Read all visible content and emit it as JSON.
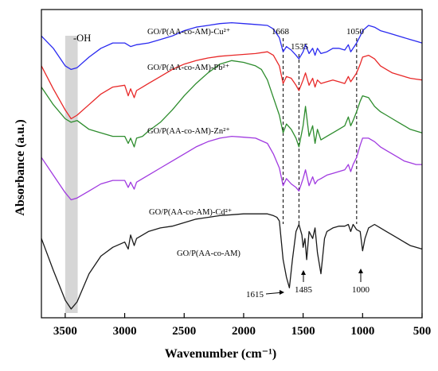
{
  "chart_data": {
    "type": "line",
    "xlabel": "Wavenumber (cm⁻¹)",
    "ylabel": "Absorbance (a.u.)",
    "xlim": [
      3700,
      500
    ],
    "x_reversed": true,
    "x_ticks": [
      3500,
      3000,
      2500,
      2000,
      1500,
      1000,
      500
    ],
    "y_ticks_shown": false,
    "grid": false,
    "legend": "none (curves labeled inline)",
    "series": [
      {
        "name": "GO/P(AA-co-AM)-Cu²⁺",
        "color": "#2a2af0",
        "x": [
          3700,
          3600,
          3500,
          3450,
          3400,
          3300,
          3200,
          3100,
          3000,
          2950,
          2900,
          2800,
          2700,
          2600,
          2500,
          2400,
          2300,
          2200,
          2100,
          2000,
          1900,
          1800,
          1750,
          1700,
          1668,
          1640,
          1600,
          1560,
          1535,
          1500,
          1480,
          1450,
          1420,
          1400,
          1380,
          1350,
          1300,
          1250,
          1200,
          1150,
          1120,
          1100,
          1080,
          1050,
          1020,
          1000,
          950,
          900,
          850,
          800,
          750,
          700,
          650,
          600,
          550,
          500
        ],
        "values": [
          45,
          38,
          28,
          26,
          27,
          33,
          38,
          41,
          41,
          39,
          40,
          41,
          43,
          45,
          48,
          50,
          51,
          52,
          52.5,
          52,
          51.5,
          51,
          49,
          44,
          36,
          39,
          37,
          34,
          32,
          36,
          40,
          35,
          38,
          34,
          38,
          35,
          36,
          38,
          38,
          37,
          40,
          36,
          38,
          41,
          45,
          48,
          51,
          50,
          48,
          47,
          46,
          45,
          44,
          43,
          42,
          41
        ]
      },
      {
        "name": "GO/P(AA-co-AM)-Pb²⁺",
        "color": "#e82828",
        "x": [
          3700,
          3600,
          3500,
          3450,
          3400,
          3300,
          3200,
          3100,
          3000,
          2970,
          2950,
          2920,
          2900,
          2850,
          2800,
          2700,
          2600,
          2500,
          2400,
          2300,
          2200,
          2100,
          2000,
          1900,
          1800,
          1750,
          1700,
          1668,
          1640,
          1600,
          1560,
          1535,
          1500,
          1480,
          1450,
          1420,
          1400,
          1380,
          1350,
          1300,
          1250,
          1200,
          1150,
          1120,
          1100,
          1080,
          1050,
          1020,
          1000,
          950,
          900,
          850,
          800,
          750,
          700,
          650,
          600,
          550,
          500
        ],
        "values": [
          28,
          15,
          3,
          -2,
          0,
          6,
          12,
          16,
          17,
          11,
          15,
          10,
          14,
          16,
          18,
          22,
          26,
          29,
          31,
          32.5,
          33.5,
          34,
          34.5,
          35,
          36,
          34,
          28,
          18,
          22,
          21,
          17,
          14,
          20,
          24,
          17,
          21,
          16,
          20,
          18,
          19,
          20,
          19,
          18,
          22,
          19,
          21,
          24,
          29,
          33,
          34,
          32,
          28,
          26,
          24,
          23,
          22,
          21,
          20.5,
          20
        ]
      },
      {
        "name": "GO/P(AA-co-AM)-Zn²⁺",
        "color": "#2d8c2d",
        "x": [
          3700,
          3600,
          3500,
          3450,
          3400,
          3300,
          3200,
          3100,
          3000,
          2970,
          2950,
          2920,
          2900,
          2850,
          2800,
          2700,
          2600,
          2500,
          2400,
          2300,
          2200,
          2100,
          2000,
          1900,
          1850,
          1800,
          1750,
          1700,
          1668,
          1640,
          1600,
          1560,
          1535,
          1500,
          1480,
          1450,
          1420,
          1400,
          1380,
          1350,
          1300,
          1250,
          1200,
          1150,
          1120,
          1100,
          1080,
          1050,
          1020,
          1000,
          950,
          900,
          850,
          800,
          750,
          700,
          650,
          600,
          550,
          500
        ],
        "values": [
          16,
          6,
          -2,
          -4,
          -3,
          -8,
          -10,
          -12,
          -12,
          -16,
          -13,
          -18,
          -13,
          -12,
          -9,
          -4,
          3,
          11,
          18,
          24,
          29,
          31,
          30,
          28,
          26,
          20,
          10,
          0,
          -10,
          -5,
          -8,
          -13,
          -18,
          -6,
          5,
          -12,
          -6,
          -16,
          -8,
          -14,
          -12,
          -10,
          -8,
          -6,
          -1,
          -6,
          -3,
          2,
          8,
          11,
          10,
          5,
          2,
          0,
          -2,
          -4,
          -6,
          -8,
          -9,
          -10
        ]
      },
      {
        "name": "GO/P(AA-co-AM)-Cd²⁺",
        "color": "#a03ae0",
        "x": [
          3700,
          3600,
          3500,
          3450,
          3400,
          3300,
          3200,
          3100,
          3000,
          2970,
          2950,
          2920,
          2900,
          2850,
          2800,
          2700,
          2600,
          2500,
          2400,
          2300,
          2200,
          2100,
          2000,
          1900,
          1800,
          1750,
          1700,
          1668,
          1640,
          1600,
          1560,
          1535,
          1500,
          1480,
          1450,
          1420,
          1400,
          1380,
          1350,
          1300,
          1250,
          1200,
          1150,
          1120,
          1100,
          1080,
          1050,
          1020,
          1000,
          950,
          900,
          850,
          800,
          750,
          700,
          650,
          600,
          550,
          500
        ],
        "values": [
          -24,
          -34,
          -44,
          -48,
          -47,
          -43,
          -39,
          -37,
          -37,
          -41,
          -38,
          -42,
          -38,
          -36,
          -34,
          -30,
          -26,
          -22,
          -18,
          -15,
          -13,
          -12,
          -12.5,
          -13,
          -16,
          -22,
          -30,
          -40,
          -36,
          -39,
          -41,
          -43,
          -36,
          -31,
          -40,
          -35,
          -39,
          -37,
          -36,
          -34,
          -33,
          -32,
          -31,
          -28,
          -32,
          -28,
          -24,
          -17,
          -13,
          -13,
          -15,
          -18,
          -20,
          -22,
          -24,
          -26,
          -27,
          -28,
          -28
        ]
      },
      {
        "name": "GO/P(AA-co-AM)",
        "color": "#1a1a1a",
        "x": [
          3700,
          3600,
          3500,
          3450,
          3400,
          3300,
          3200,
          3100,
          3000,
          2970,
          2950,
          2920,
          2900,
          2850,
          2800,
          2700,
          2600,
          2500,
          2400,
          2300,
          2200,
          2100,
          2000,
          1900,
          1800,
          1750,
          1720,
          1700,
          1668,
          1640,
          1615,
          1590,
          1560,
          1535,
          1510,
          1500,
          1485,
          1470,
          1450,
          1420,
          1400,
          1380,
          1350,
          1320,
          1300,
          1250,
          1200,
          1150,
          1120,
          1100,
          1080,
          1050,
          1020,
          1000,
          980,
          950,
          900,
          850,
          800,
          750,
          700,
          650,
          600,
          550,
          500
        ],
        "values": [
          -70,
          -88,
          -105,
          -110,
          -106,
          -90,
          -80,
          -75,
          -72,
          -76,
          -68,
          -74,
          -70,
          -68,
          -66,
          -64,
          -63,
          -61,
          -59,
          -58,
          -57,
          -56.5,
          -56,
          -56,
          -56,
          -57,
          -58,
          -60,
          -82,
          -92,
          -98,
          -82,
          -66,
          -62,
          -68,
          -75,
          -70,
          -82,
          -66,
          -70,
          -64,
          -78,
          -90,
          -70,
          -66,
          -64,
          -63,
          -63,
          -62,
          -66,
          -62,
          -65,
          -66,
          -77,
          -70,
          -64,
          -62,
          -64,
          -66,
          -68,
          -70,
          -72,
          -74,
          -75,
          -76
        ]
      }
    ],
    "annotations": [
      "-OH",
      "1668",
      "1535",
      "1050",
      "1615",
      "1485",
      "1000"
    ]
  }
}
